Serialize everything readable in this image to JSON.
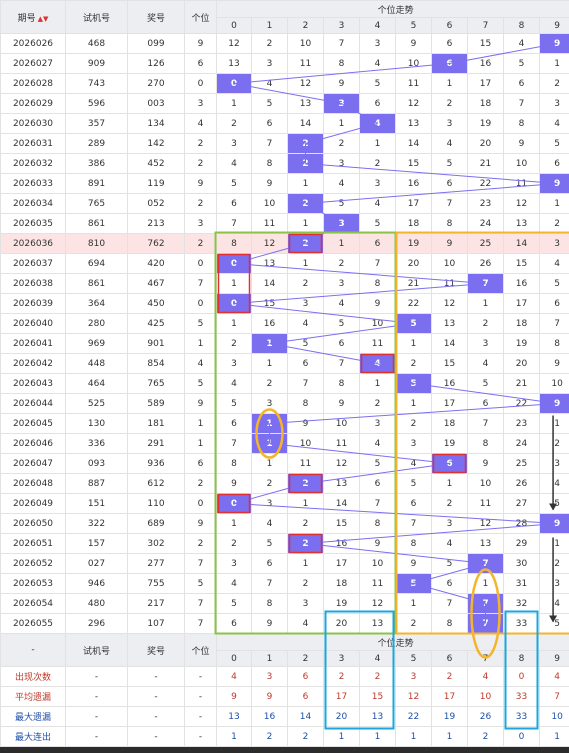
{
  "header": {
    "period": "期号",
    "trial": "试机号",
    "prize": "奖号",
    "unit": "个位",
    "trend": "个位走势",
    "digits": [
      "0",
      "1",
      "2",
      "3",
      "4",
      "5",
      "6",
      "7",
      "8",
      "9"
    ]
  },
  "footer_header": {
    "dash": "-",
    "trial": "试机号",
    "prize": "奖号",
    "unit": "个位",
    "trend": "个位走势"
  },
  "colors": {
    "hit": "#7b6ff0",
    "line": "#7b6ff0",
    "green_box": "#8bc34a",
    "orange_box": "#f5b52a",
    "red_box": "#e03030",
    "cyan_box": "#1aa7e0",
    "stat_label_red": "#c0392b",
    "stat_label_blue": "#1e4fa8"
  },
  "chart_data": {
    "type": "table",
    "rows": [
      {
        "period": "2026026",
        "trial": "468",
        "prize": "099",
        "unit": "9",
        "trend": [
          "12",
          "2",
          "10",
          "7",
          "3",
          "9",
          "6",
          "15",
          "4",
          "9"
        ]
      },
      {
        "period": "2026027",
        "trial": "909",
        "prize": "126",
        "unit": "6",
        "trend": [
          "13",
          "3",
          "11",
          "8",
          "4",
          "10",
          "6",
          "16",
          "5",
          "1"
        ]
      },
      {
        "period": "2026028",
        "trial": "743",
        "prize": "270",
        "unit": "0",
        "trend": [
          "0",
          "4",
          "12",
          "9",
          "5",
          "11",
          "1",
          "17",
          "6",
          "2"
        ]
      },
      {
        "period": "2026029",
        "trial": "596",
        "prize": "003",
        "unit": "3",
        "trend": [
          "1",
          "5",
          "13",
          "3",
          "6",
          "12",
          "2",
          "18",
          "7",
          "3"
        ]
      },
      {
        "period": "2026030",
        "trial": "357",
        "prize": "134",
        "unit": "4",
        "trend": [
          "2",
          "6",
          "14",
          "1",
          "4",
          "13",
          "3",
          "19",
          "8",
          "4"
        ]
      },
      {
        "period": "2026031",
        "trial": "289",
        "prize": "142",
        "unit": "2",
        "trend": [
          "3",
          "7",
          "2",
          "2",
          "1",
          "14",
          "4",
          "20",
          "9",
          "5"
        ]
      },
      {
        "period": "2026032",
        "trial": "386",
        "prize": "452",
        "unit": "2",
        "trend": [
          "4",
          "8",
          "2",
          "3",
          "2",
          "15",
          "5",
          "21",
          "10",
          "6"
        ]
      },
      {
        "period": "2026033",
        "trial": "891",
        "prize": "119",
        "unit": "9",
        "trend": [
          "5",
          "9",
          "1",
          "4",
          "3",
          "16",
          "6",
          "22",
          "11",
          "9"
        ]
      },
      {
        "period": "2026034",
        "trial": "765",
        "prize": "052",
        "unit": "2",
        "trend": [
          "6",
          "10",
          "2",
          "5",
          "4",
          "17",
          "7",
          "23",
          "12",
          "1"
        ]
      },
      {
        "period": "2026035",
        "trial": "861",
        "prize": "213",
        "unit": "3",
        "trend": [
          "7",
          "11",
          "1",
          "3",
          "5",
          "18",
          "8",
          "24",
          "13",
          "2"
        ]
      },
      {
        "period": "2026036",
        "trial": "810",
        "prize": "762",
        "unit": "2",
        "trend": [
          "8",
          "12",
          "2",
          "1",
          "6",
          "19",
          "9",
          "25",
          "14",
          "3"
        ]
      },
      {
        "period": "2026037",
        "trial": "694",
        "prize": "420",
        "unit": "0",
        "trend": [
          "0",
          "13",
          "1",
          "2",
          "7",
          "20",
          "10",
          "26",
          "15",
          "4"
        ]
      },
      {
        "period": "2026038",
        "trial": "861",
        "prize": "467",
        "unit": "7",
        "trend": [
          "1",
          "14",
          "2",
          "3",
          "8",
          "21",
          "11",
          "7",
          "16",
          "5"
        ]
      },
      {
        "period": "2026039",
        "trial": "364",
        "prize": "450",
        "unit": "0",
        "trend": [
          "0",
          "15",
          "3",
          "4",
          "9",
          "22",
          "12",
          "1",
          "17",
          "6"
        ]
      },
      {
        "period": "2026040",
        "trial": "280",
        "prize": "425",
        "unit": "5",
        "trend": [
          "1",
          "16",
          "4",
          "5",
          "10",
          "5",
          "13",
          "2",
          "18",
          "7"
        ]
      },
      {
        "period": "2026041",
        "trial": "969",
        "prize": "901",
        "unit": "1",
        "trend": [
          "2",
          "1",
          "5",
          "6",
          "11",
          "1",
          "14",
          "3",
          "19",
          "8"
        ]
      },
      {
        "period": "2026042",
        "trial": "448",
        "prize": "854",
        "unit": "4",
        "trend": [
          "3",
          "1",
          "6",
          "7",
          "4",
          "2",
          "15",
          "4",
          "20",
          "9"
        ]
      },
      {
        "period": "2026043",
        "trial": "464",
        "prize": "765",
        "unit": "5",
        "trend": [
          "4",
          "2",
          "7",
          "8",
          "1",
          "5",
          "16",
          "5",
          "21",
          "10"
        ]
      },
      {
        "period": "2026044",
        "trial": "525",
        "prize": "589",
        "unit": "9",
        "trend": [
          "5",
          "3",
          "8",
          "9",
          "2",
          "1",
          "17",
          "6",
          "22",
          "9"
        ]
      },
      {
        "period": "2026045",
        "trial": "130",
        "prize": "181",
        "unit": "1",
        "trend": [
          "6",
          "1",
          "9",
          "10",
          "3",
          "2",
          "18",
          "7",
          "23",
          "1"
        ]
      },
      {
        "period": "2026046",
        "trial": "336",
        "prize": "291",
        "unit": "1",
        "trend": [
          "7",
          "1",
          "10",
          "11",
          "4",
          "3",
          "19",
          "8",
          "24",
          "2"
        ]
      },
      {
        "period": "2026047",
        "trial": "093",
        "prize": "936",
        "unit": "6",
        "trend": [
          "8",
          "1",
          "11",
          "12",
          "5",
          "4",
          "6",
          "9",
          "25",
          "3"
        ]
      },
      {
        "period": "2026048",
        "trial": "887",
        "prize": "612",
        "unit": "2",
        "trend": [
          "9",
          "2",
          "2",
          "13",
          "6",
          "5",
          "1",
          "10",
          "26",
          "4"
        ]
      },
      {
        "period": "2026049",
        "trial": "151",
        "prize": "110",
        "unit": "0",
        "trend": [
          "0",
          "3",
          "1",
          "14",
          "7",
          "6",
          "2",
          "11",
          "27",
          "5"
        ]
      },
      {
        "period": "2026050",
        "trial": "322",
        "prize": "689",
        "unit": "9",
        "trend": [
          "1",
          "4",
          "2",
          "15",
          "8",
          "7",
          "3",
          "12",
          "28",
          "9"
        ]
      },
      {
        "period": "2026051",
        "trial": "157",
        "prize": "302",
        "unit": "2",
        "trend": [
          "2",
          "5",
          "2",
          "16",
          "9",
          "8",
          "4",
          "13",
          "29",
          "1"
        ]
      },
      {
        "period": "2026052",
        "trial": "027",
        "prize": "277",
        "unit": "7",
        "trend": [
          "3",
          "6",
          "1",
          "17",
          "10",
          "9",
          "5",
          "7",
          "30",
          "2"
        ]
      },
      {
        "period": "2026053",
        "trial": "946",
        "prize": "755",
        "unit": "5",
        "trend": [
          "4",
          "7",
          "2",
          "18",
          "11",
          "5",
          "6",
          "1",
          "31",
          "3"
        ]
      },
      {
        "period": "2026054",
        "trial": "480",
        "prize": "217",
        "unit": "7",
        "trend": [
          "5",
          "8",
          "3",
          "19",
          "12",
          "1",
          "7",
          "7",
          "32",
          "4"
        ]
      },
      {
        "period": "2026055",
        "trial": "296",
        "prize": "107",
        "unit": "7",
        "trend": [
          "6",
          "9",
          "4",
          "20",
          "13",
          "2",
          "8",
          "7",
          "33",
          "5"
        ]
      }
    ],
    "stats": [
      {
        "label": "出现次数",
        "dash": [
          "-",
          "-",
          "-"
        ],
        "values": [
          "4",
          "3",
          "6",
          "2",
          "2",
          "3",
          "2",
          "4",
          "0",
          "4"
        ]
      },
      {
        "label": "平均遗漏",
        "dash": [
          "-",
          "-",
          "-"
        ],
        "values": [
          "9",
          "9",
          "6",
          "17",
          "15",
          "12",
          "17",
          "10",
          "33",
          "7"
        ]
      },
      {
        "label": "最大遗漏",
        "dash": [
          "-",
          "-",
          "-"
        ],
        "values": [
          "13",
          "16",
          "14",
          "20",
          "13",
          "22",
          "19",
          "26",
          "33",
          "10"
        ]
      },
      {
        "label": "最大连出",
        "dash": [
          "-",
          "-",
          "-"
        ],
        "values": [
          "1",
          "2",
          "2",
          "1",
          "1",
          "1",
          "1",
          "2",
          "0",
          "1"
        ]
      }
    ]
  }
}
